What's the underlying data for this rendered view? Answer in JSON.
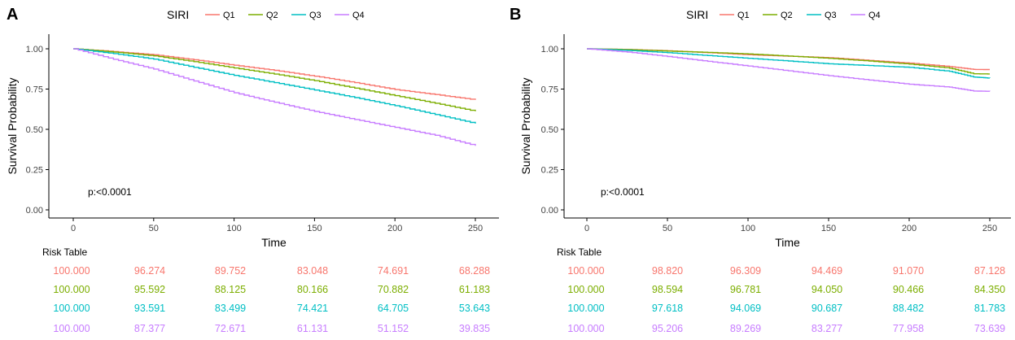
{
  "chart_data": [
    {
      "type": "line",
      "panel_label": "A",
      "legend_title": "SIRI",
      "legend_position": "top",
      "xlabel": "Time",
      "ylabel": "Survival Probability",
      "xlim": [
        0,
        250
      ],
      "ylim": [
        0,
        1
      ],
      "x_ticks": [
        "0",
        "50",
        "100",
        "150",
        "200",
        "250"
      ],
      "y_ticks": [
        "0.00",
        "0.25",
        "0.50",
        "0.75",
        "1.00"
      ],
      "annotation": "p:<0.0001",
      "series": [
        {
          "name": "Q1",
          "color": "#F8766D",
          "x": [
            0,
            25,
            50,
            75,
            100,
            125,
            150,
            175,
            200,
            225,
            250
          ],
          "y": [
            1.0,
            0.983,
            0.963,
            0.932,
            0.898,
            0.866,
            0.83,
            0.79,
            0.747,
            0.716,
            0.683
          ]
        },
        {
          "name": "Q2",
          "color": "#7CAE00",
          "x": [
            0,
            25,
            50,
            75,
            100,
            125,
            150,
            175,
            200,
            225,
            250
          ],
          "y": [
            1.0,
            0.98,
            0.956,
            0.92,
            0.881,
            0.843,
            0.802,
            0.756,
            0.709,
            0.662,
            0.612
          ]
        },
        {
          "name": "Q3",
          "color": "#00BFC4",
          "x": [
            0,
            25,
            50,
            75,
            100,
            125,
            150,
            175,
            200,
            225,
            250
          ],
          "y": [
            1.0,
            0.97,
            0.936,
            0.885,
            0.835,
            0.79,
            0.744,
            0.697,
            0.647,
            0.592,
            0.536
          ]
        },
        {
          "name": "Q4",
          "color": "#C77CFF",
          "x": [
            0,
            25,
            50,
            75,
            100,
            125,
            150,
            175,
            200,
            225,
            250
          ],
          "y": [
            1.0,
            0.935,
            0.874,
            0.8,
            0.727,
            0.668,
            0.611,
            0.561,
            0.512,
            0.463,
            0.398
          ]
        }
      ],
      "risk_table": {
        "title": "Risk Table",
        "rows": [
          [
            "100.000",
            "96.274",
            "89.752",
            "83.048",
            "74.691",
            "68.288"
          ],
          [
            "100.000",
            "95.592",
            "88.125",
            "80.166",
            "70.882",
            "61.183"
          ],
          [
            "100.000",
            "93.591",
            "83.499",
            "74.421",
            "64.705",
            "53.643"
          ],
          [
            "100.000",
            "87.377",
            "72.671",
            "61.131",
            "51.152",
            "39.835"
          ]
        ]
      }
    },
    {
      "type": "line",
      "panel_label": "B",
      "legend_title": "SIRI",
      "legend_position": "top",
      "xlabel": "Time",
      "ylabel": "Survival Probability",
      "xlim": [
        0,
        250
      ],
      "ylim": [
        0,
        1
      ],
      "x_ticks": [
        "0",
        "50",
        "100",
        "150",
        "200",
        "250"
      ],
      "y_ticks": [
        "0.00",
        "0.25",
        "0.50",
        "0.75",
        "1.00"
      ],
      "annotation": "p:<0.0001",
      "series": [
        {
          "name": "Q1",
          "color": "#F8766D",
          "x": [
            0,
            25,
            50,
            75,
            100,
            125,
            150,
            175,
            200,
            225,
            240,
            250
          ],
          "y": [
            1.0,
            0.996,
            0.988,
            0.976,
            0.963,
            0.954,
            0.945,
            0.928,
            0.911,
            0.89,
            0.872,
            0.871
          ]
        },
        {
          "name": "Q2",
          "color": "#7CAE00",
          "x": [
            0,
            25,
            50,
            75,
            100,
            125,
            150,
            175,
            200,
            225,
            240,
            250
          ],
          "y": [
            1.0,
            0.995,
            0.986,
            0.978,
            0.968,
            0.955,
            0.941,
            0.924,
            0.905,
            0.88,
            0.845,
            0.844
          ]
        },
        {
          "name": "Q3",
          "color": "#00BFC4",
          "x": [
            0,
            25,
            50,
            75,
            100,
            125,
            150,
            175,
            200,
            225,
            240,
            250
          ],
          "y": [
            1.0,
            0.99,
            0.976,
            0.958,
            0.941,
            0.924,
            0.907,
            0.896,
            0.885,
            0.86,
            0.825,
            0.818
          ]
        },
        {
          "name": "Q4",
          "color": "#C77CFF",
          "x": [
            0,
            25,
            50,
            75,
            100,
            125,
            150,
            175,
            200,
            225,
            240,
            250
          ],
          "y": [
            1.0,
            0.98,
            0.952,
            0.922,
            0.893,
            0.863,
            0.833,
            0.806,
            0.78,
            0.762,
            0.738,
            0.736
          ]
        }
      ],
      "risk_table": {
        "title": "Risk Table",
        "rows": [
          [
            "100.000",
            "98.820",
            "96.309",
            "94.469",
            "91.070",
            "87.128"
          ],
          [
            "100.000",
            "98.594",
            "96.781",
            "94.050",
            "90.466",
            "84.350"
          ],
          [
            "100.000",
            "97.618",
            "94.069",
            "90.687",
            "88.482",
            "81.783"
          ],
          [
            "100.000",
            "95.206",
            "89.269",
            "83.277",
            "77.958",
            "73.639"
          ]
        ]
      }
    }
  ]
}
